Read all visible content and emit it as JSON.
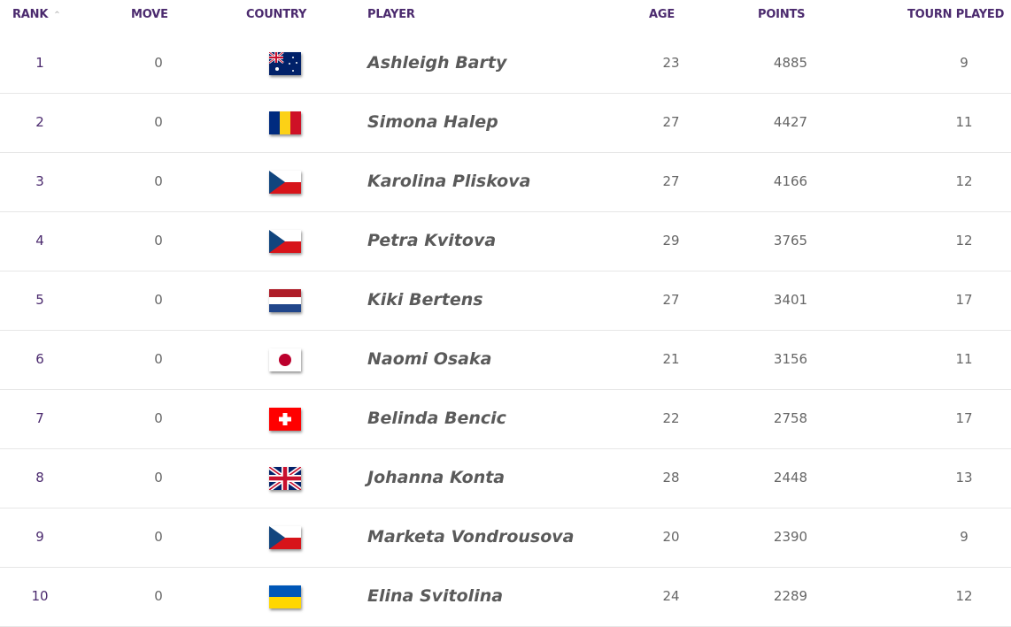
{
  "headers": {
    "rank": "RANK",
    "move": "MOVE",
    "country": "COUNTRY",
    "player": "PLAYER",
    "age": "AGE",
    "points": "POINTS",
    "tourn": "TOURN PLAYED"
  },
  "sort_icon": "chevron-up-icon",
  "colors": {
    "header": "#4b2a6e",
    "rank": "#4b2a6e"
  },
  "rows": [
    {
      "rank": "1",
      "move": "0",
      "country": "AU",
      "player": "Ashleigh Barty",
      "age": "23",
      "points": "4885",
      "tourn": "9"
    },
    {
      "rank": "2",
      "move": "0",
      "country": "RO",
      "player": "Simona Halep",
      "age": "27",
      "points": "4427",
      "tourn": "11"
    },
    {
      "rank": "3",
      "move": "0",
      "country": "CZ",
      "player": "Karolina Pliskova",
      "age": "27",
      "points": "4166",
      "tourn": "12"
    },
    {
      "rank": "4",
      "move": "0",
      "country": "CZ",
      "player": "Petra Kvitova",
      "age": "29",
      "points": "3765",
      "tourn": "12"
    },
    {
      "rank": "5",
      "move": "0",
      "country": "NL",
      "player": "Kiki Bertens",
      "age": "27",
      "points": "3401",
      "tourn": "17"
    },
    {
      "rank": "6",
      "move": "0",
      "country": "JP",
      "player": "Naomi Osaka",
      "age": "21",
      "points": "3156",
      "tourn": "11"
    },
    {
      "rank": "7",
      "move": "0",
      "country": "CH",
      "player": "Belinda Bencic",
      "age": "22",
      "points": "2758",
      "tourn": "17"
    },
    {
      "rank": "8",
      "move": "0",
      "country": "GB",
      "player": "Johanna Konta",
      "age": "28",
      "points": "2448",
      "tourn": "13"
    },
    {
      "rank": "9",
      "move": "0",
      "country": "CZ",
      "player": "Marketa Vondrousova",
      "age": "20",
      "points": "2390",
      "tourn": "9"
    },
    {
      "rank": "10",
      "move": "0",
      "country": "UA",
      "player": "Elina Svitolina",
      "age": "24",
      "points": "2289",
      "tourn": "12"
    }
  ]
}
